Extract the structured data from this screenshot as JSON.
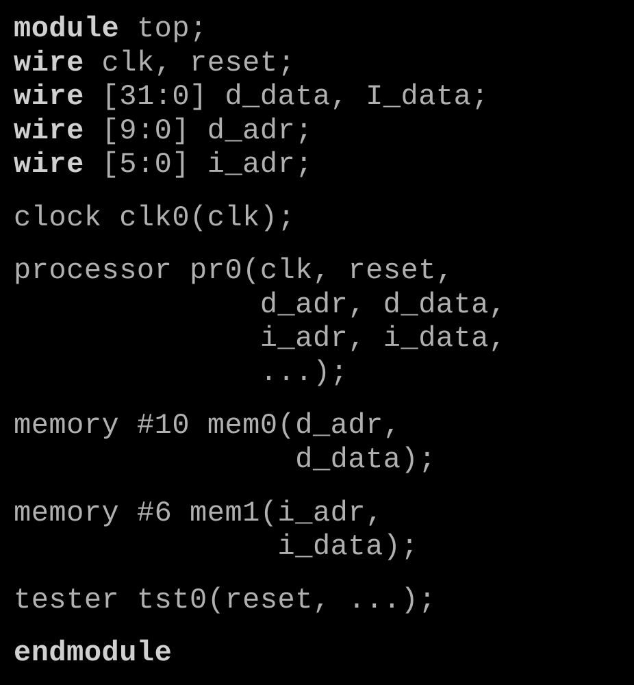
{
  "code": {
    "font_family": "Courier New, monospace",
    "font_size_pt": 32,
    "background_color": "#000000",
    "text_color": "#b0b0b0",
    "keyword_color": "#d0d0d0",
    "keyword_weight": "bold",
    "blocks": [
      {
        "lines": [
          {
            "tokens": [
              {
                "t": "module",
                "kw": true
              },
              {
                "t": " top;",
                "kw": false
              }
            ]
          },
          {
            "tokens": [
              {
                "t": "wire",
                "kw": true
              },
              {
                "t": " clk, reset;",
                "kw": false
              }
            ]
          },
          {
            "tokens": [
              {
                "t": "wire",
                "kw": true
              },
              {
                "t": " [31:0] d_data, I_data;",
                "kw": false
              }
            ]
          },
          {
            "tokens": [
              {
                "t": "wire",
                "kw": true
              },
              {
                "t": " [9:0] d_adr;",
                "kw": false
              }
            ]
          },
          {
            "tokens": [
              {
                "t": "wire",
                "kw": true
              },
              {
                "t": " [5:0] i_adr;",
                "kw": false
              }
            ]
          }
        ]
      },
      {
        "lines": [
          {
            "tokens": [
              {
                "t": "clock clk0(clk);",
                "kw": false
              }
            ]
          }
        ]
      },
      {
        "lines": [
          {
            "tokens": [
              {
                "t": "processor pr0(clk, reset,",
                "kw": false
              }
            ]
          },
          {
            "tokens": [
              {
                "t": "              d_adr, d_data,",
                "kw": false
              }
            ]
          },
          {
            "tokens": [
              {
                "t": "              i_adr, i_data,",
                "kw": false
              }
            ]
          },
          {
            "tokens": [
              {
                "t": "              ...);",
                "kw": false
              }
            ]
          }
        ]
      },
      {
        "lines": [
          {
            "tokens": [
              {
                "t": "memory #10 mem0(d_adr,",
                "kw": false
              }
            ]
          },
          {
            "tokens": [
              {
                "t": "                d_data);",
                "kw": false
              }
            ]
          }
        ]
      },
      {
        "lines": [
          {
            "tokens": [
              {
                "t": "memory #6 mem1(i_adr,",
                "kw": false
              }
            ]
          },
          {
            "tokens": [
              {
                "t": "               i_data);",
                "kw": false
              }
            ]
          }
        ]
      },
      {
        "lines": [
          {
            "tokens": [
              {
                "t": "tester tst0(reset, ...);",
                "kw": false
              }
            ]
          }
        ]
      },
      {
        "lines": [
          {
            "tokens": [
              {
                "t": "endmodule",
                "kw": true
              }
            ]
          }
        ]
      }
    ]
  }
}
